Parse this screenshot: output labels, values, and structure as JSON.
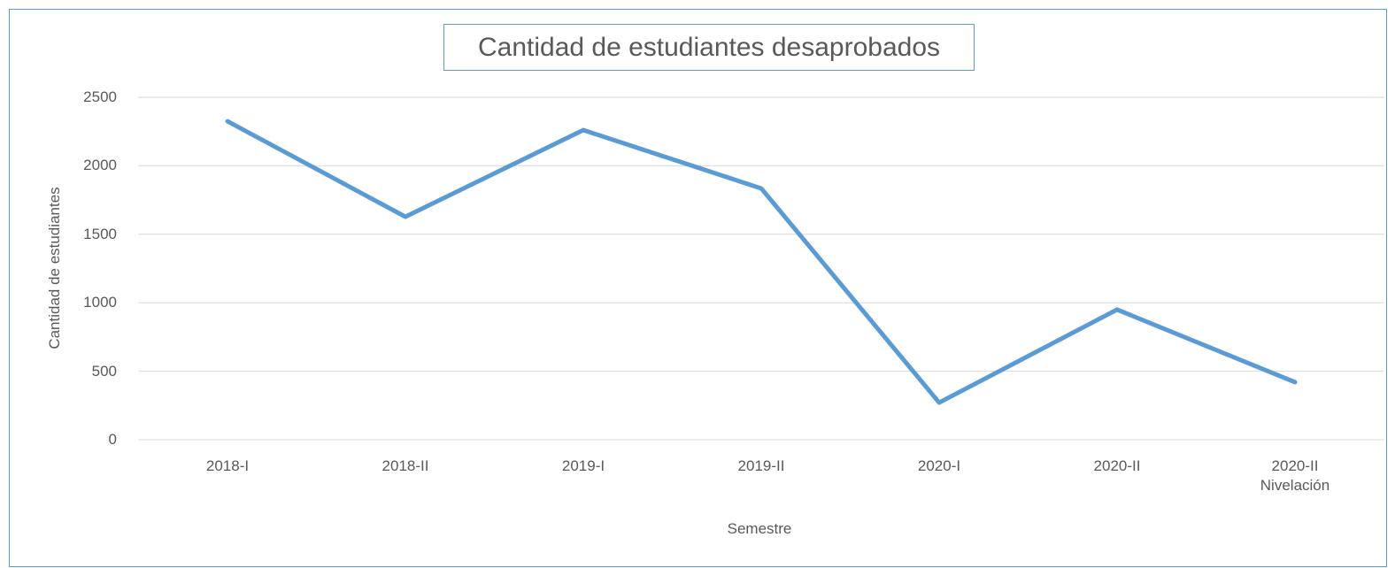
{
  "chart_data": {
    "type": "line",
    "title": "Cantidad de estudiantes desaprobados",
    "x_label": "Semestre",
    "y_label": "Cantidad de estudiantes",
    "categories": [
      "2018-I",
      "2018-II",
      "2019-I",
      "2019-II",
      "2020-I",
      "2020-II",
      "2020-II Nivelación"
    ],
    "series": [
      {
        "name": "Cantidad de estudiantes",
        "color": "#5b9bd5",
        "values": [
          2325,
          1628,
          2261,
          1835,
          271,
          950,
          420
        ]
      }
    ],
    "ylim": [
      0,
      2500
    ],
    "yticks": [
      0,
      500,
      1000,
      1500,
      2000,
      2500
    ],
    "grid": true
  }
}
